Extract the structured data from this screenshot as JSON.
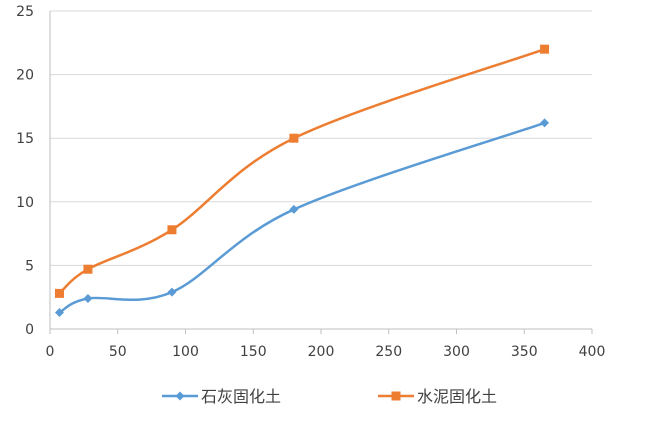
{
  "chart_data": {
    "type": "line",
    "title": "",
    "xlabel": "",
    "ylabel": "",
    "xlim": [
      0,
      400
    ],
    "ylim": [
      0,
      25
    ],
    "x_ticks": [
      0,
      50,
      100,
      150,
      200,
      250,
      300,
      350,
      400
    ],
    "y_ticks": [
      0,
      5,
      10,
      15,
      20,
      25
    ],
    "grid": "horizontal",
    "smooth": true,
    "legend_position": "bottom",
    "series": [
      {
        "name": "石灰固化土",
        "color": "#5B9BD5",
        "marker": "diamond",
        "x": [
          7,
          28,
          90,
          180,
          365
        ],
        "y": [
          1.3,
          2.4,
          2.9,
          9.4,
          16.2
        ]
      },
      {
        "name": "水泥固化土",
        "color": "#ED7D31",
        "marker": "square",
        "x": [
          7,
          28,
          90,
          180,
          365
        ],
        "y": [
          2.8,
          4.7,
          7.8,
          15.0,
          22.0
        ]
      }
    ]
  }
}
